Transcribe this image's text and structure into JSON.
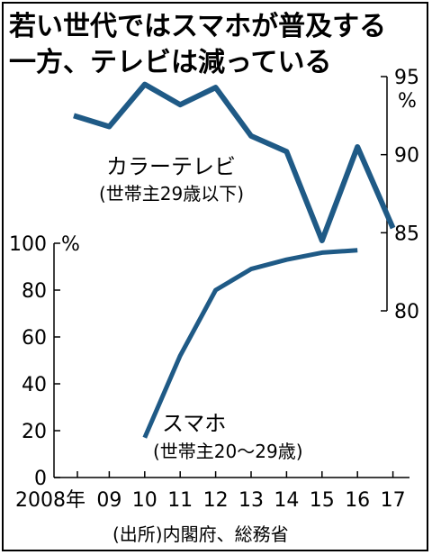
{
  "title_line1": "若い世代ではスマホが普及する",
  "title_line2": "一方、テレビは減っている",
  "source": "(出所)内閣府、総務省",
  "line_color": "#1f5a86",
  "chart_data": [
    {
      "type": "line",
      "categories": [
        "2008年",
        "09",
        "10",
        "11",
        "12",
        "13",
        "14",
        "15",
        "16",
        "17"
      ],
      "axis": "right",
      "yunit": "%",
      "ylim": [
        80,
        95
      ],
      "yticks": [
        "95",
        "90",
        "85",
        "80"
      ],
      "series": [
        {
          "name": "カラーテレビ",
          "subtitle": "(世帯主29歳以下)",
          "x": [
            "2008年",
            "09",
            "10",
            "11",
            "12",
            "13",
            "14",
            "15",
            "16",
            "17"
          ],
          "values": [
            92.5,
            91.8,
            94.5,
            93.2,
            94.3,
            91.2,
            90.2,
            84.5,
            90.5,
            85.3
          ]
        }
      ]
    },
    {
      "type": "line",
      "categories": [
        "2008年",
        "09",
        "10",
        "11",
        "12",
        "13",
        "14",
        "15",
        "16",
        "17"
      ],
      "axis": "left",
      "yunit": "%",
      "ylim": [
        0,
        100
      ],
      "yticks": [
        "100",
        "80",
        "60",
        "40",
        "20",
        "0"
      ],
      "series": [
        {
          "name": "スマホ",
          "subtitle": "(世帯主20〜29歳)",
          "x": [
            "10",
            "11",
            "12",
            "13",
            "14",
            "15",
            "16"
          ],
          "values": [
            17,
            52,
            80,
            89,
            93,
            96,
            97
          ]
        }
      ]
    }
  ]
}
